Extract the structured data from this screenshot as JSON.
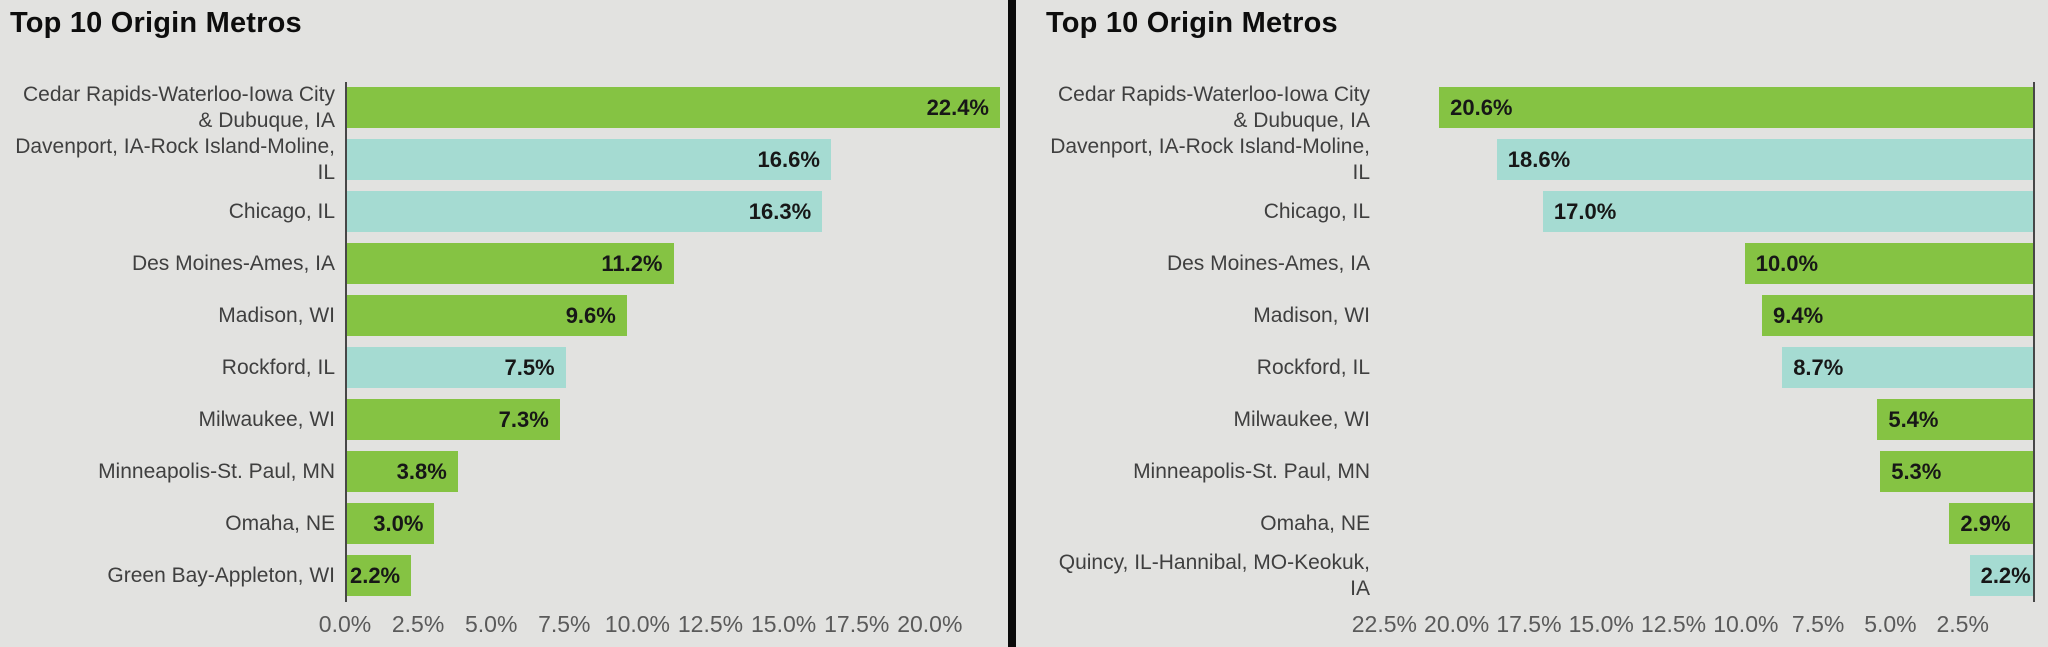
{
  "style": {
    "background": "#e2e2e0",
    "divider": "#0a0a0a",
    "axis_line": "#474747",
    "green": "#85c343",
    "teal": "#a5dbd2",
    "value_text": "#171717",
    "category_text": "#3f3f3f",
    "tick_text": "#5a5a5a"
  },
  "chart_data": [
    {
      "type": "bar",
      "orientation": "horizontal",
      "direction": "left-to-right",
      "title": "Top 10 Origin Metros",
      "categories": [
        "Cedar Rapids-Waterloo-Iowa City\n& Dubuque, IA",
        "Davenport, IA-Rock Island-Moline,\nIL",
        "Chicago, IL",
        "Des Moines-Ames, IA",
        "Madison, WI",
        "Rockford, IL",
        "Milwaukee, WI",
        "Minneapolis-St. Paul, MN",
        "Omaha, NE",
        "Green Bay-Appleton, WI"
      ],
      "values": [
        22.4,
        16.6,
        16.3,
        11.2,
        9.6,
        7.5,
        7.3,
        3.8,
        3.0,
        2.2
      ],
      "value_labels": [
        "22.4%",
        "16.6%",
        "16.3%",
        "11.2%",
        "9.6%",
        "7.5%",
        "7.3%",
        "3.8%",
        "3.0%",
        "2.2%"
      ],
      "bar_colors": [
        "green",
        "teal",
        "teal",
        "green",
        "green",
        "teal",
        "green",
        "green",
        "green",
        "green"
      ],
      "xlim": [
        0,
        22.4
      ],
      "ticks": {
        "values": [
          0,
          2.5,
          5,
          7.5,
          10,
          12.5,
          15,
          17.5,
          20
        ],
        "labels": [
          "0.0%",
          "2.5%",
          "5.0%",
          "7.5%",
          "10.0%",
          "12.5%",
          "15.0%",
          "17.5%",
          "20.0%"
        ]
      },
      "grid": false,
      "legend": false,
      "axis_side": "left"
    },
    {
      "type": "bar",
      "orientation": "horizontal",
      "direction": "right-to-left",
      "title": "Top 10 Origin Metros",
      "categories": [
        "Cedar Rapids-Waterloo-Iowa City\n& Dubuque, IA",
        "Davenport, IA-Rock Island-Moline,\nIL",
        "Chicago, IL",
        "Des Moines-Ames, IA",
        "Madison, WI",
        "Rockford, IL",
        "Milwaukee, WI",
        "Minneapolis-St. Paul, MN",
        "Omaha, NE",
        "Quincy, IL-Hannibal, MO-Keokuk,\nIA"
      ],
      "values": [
        20.6,
        18.6,
        17.0,
        10.0,
        9.4,
        8.7,
        5.4,
        5.3,
        2.9,
        2.2
      ],
      "value_labels": [
        "20.6%",
        "18.6%",
        "17.0%",
        "10.0%",
        "9.4%",
        "8.7%",
        "5.4%",
        "5.3%",
        "2.9%",
        "2.2%"
      ],
      "bar_colors": [
        "green",
        "teal",
        "teal",
        "green",
        "green",
        "teal",
        "green",
        "green",
        "green",
        "teal"
      ],
      "xlim": [
        0,
        22.65
      ],
      "ticks": {
        "values": [
          22.5,
          20,
          17.5,
          15,
          12.5,
          10,
          7.5,
          5,
          2.5
        ],
        "labels": [
          "22.5%",
          "20.0%",
          "17.5%",
          "15.0%",
          "12.5%",
          "10.0%",
          "7.5%",
          "5.0%",
          "2.5%"
        ]
      },
      "grid": false,
      "legend": false,
      "axis_side": "right"
    }
  ]
}
